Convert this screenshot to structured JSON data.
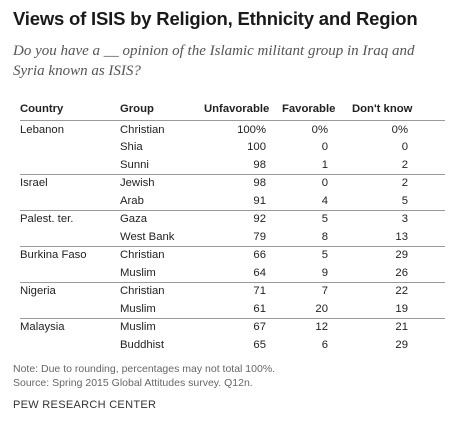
{
  "title": "Views of ISIS by Religion, Ethnicity and Region",
  "subtitle": "Do you have a __ opinion of the Islamic militant group in Iraq and Syria known as ISIS?",
  "footnote": "Note: Due to rounding, percentages may not total 100%.",
  "source": "Source: Spring 2015 Global Attitudes survey. Q12n.",
  "credit": "PEW RESEARCH CENTER",
  "chart_data": {
    "type": "table",
    "title": "Views of ISIS by Religion, Ethnicity and Region",
    "columns": [
      "Country",
      "Group",
      "Unfavorable",
      "Favorable",
      "Don't know"
    ],
    "rows": [
      {
        "country": "Lebanon",
        "group": "Christian",
        "unfavorable": "100%",
        "favorable": "0%",
        "dont_know": "0%"
      },
      {
        "country": "",
        "group": "Shia",
        "unfavorable": "100",
        "favorable": "0",
        "dont_know": "0"
      },
      {
        "country": "",
        "group": "Sunni",
        "unfavorable": "98",
        "favorable": "1",
        "dont_know": "2"
      },
      {
        "country": "Israel",
        "group": "Jewish",
        "unfavorable": "98",
        "favorable": "0",
        "dont_know": "2"
      },
      {
        "country": "",
        "group": "Arab",
        "unfavorable": "91",
        "favorable": "4",
        "dont_know": "5"
      },
      {
        "country": "Palest. ter.",
        "group": "Gaza",
        "unfavorable": "92",
        "favorable": "5",
        "dont_know": "3"
      },
      {
        "country": "",
        "group": "West Bank",
        "unfavorable": "79",
        "favorable": "8",
        "dont_know": "13"
      },
      {
        "country": "Burkina Faso",
        "group": "Christian",
        "unfavorable": "66",
        "favorable": "5",
        "dont_know": "29"
      },
      {
        "country": "",
        "group": "Muslim",
        "unfavorable": "64",
        "favorable": "9",
        "dont_know": "26"
      },
      {
        "country": "Nigeria",
        "group": "Christian",
        "unfavorable": "71",
        "favorable": "7",
        "dont_know": "22"
      },
      {
        "country": "",
        "group": "Muslim",
        "unfavorable": "61",
        "favorable": "20",
        "dont_know": "19"
      },
      {
        "country": "Malaysia",
        "group": "Muslim",
        "unfavorable": "67",
        "favorable": "12",
        "dont_know": "21"
      },
      {
        "country": "",
        "group": "Buddhist",
        "unfavorable": "65",
        "favorable": "6",
        "dont_know": "29"
      }
    ]
  }
}
